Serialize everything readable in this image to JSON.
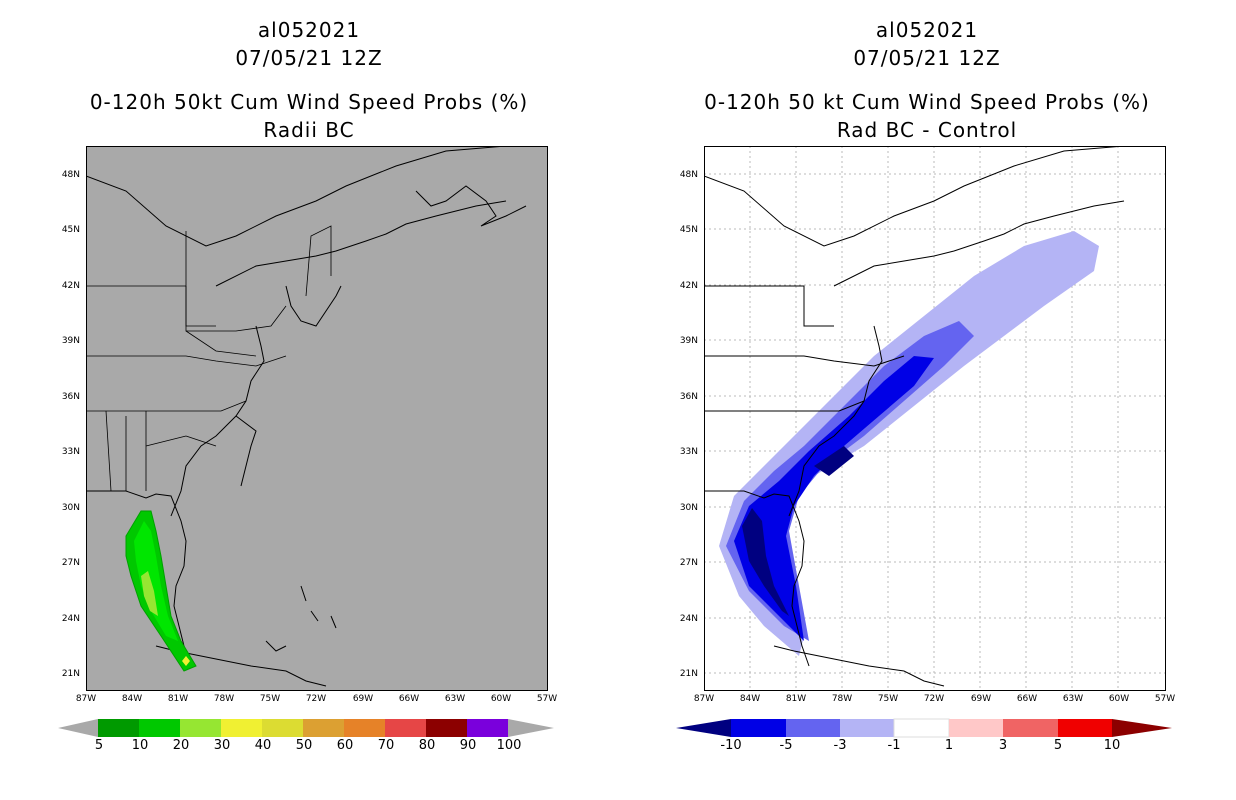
{
  "panels": [
    {
      "id": "left",
      "storm_id": "al052021",
      "datetime": "07/05/21 12Z",
      "title": "0-120h 50kt Cum Wind Speed Probs (%)",
      "subtitle": "Radii BC",
      "background": "#a9a9a9",
      "colorbar": {
        "colors": [
          "#009a00",
          "#00c800",
          "#00e600",
          "#96e632",
          "#f0f032",
          "#dcdc32",
          "#dca032",
          "#e68228",
          "#e64646",
          "#dc0000",
          "#8c0000",
          "#7a00dc"
        ],
        "labels": [
          "5",
          "10",
          "20",
          "30",
          "40",
          "50",
          "60",
          "70",
          "80",
          "90",
          "100"
        ]
      }
    },
    {
      "id": "right",
      "storm_id": "al052021",
      "datetime": "07/05/21 12Z",
      "title": "0-120h 50 kt Cum Wind Speed Probs (%)",
      "subtitle": "Rad BC - Control",
      "background": "#ffffff",
      "colorbar": {
        "colors": [
          "#000080",
          "#0000e6",
          "#6464f0",
          "#b4b4f5",
          "#ffffff",
          "#ffc8c8",
          "#f06464",
          "#f00000",
          "#8c0000"
        ],
        "labels": [
          "-10",
          "-5",
          "-3",
          "-1",
          "1",
          "3",
          "5",
          "10"
        ]
      }
    }
  ],
  "axes": {
    "lat_labels": [
      "48N",
      "45N",
      "42N",
      "39N",
      "36N",
      "33N",
      "30N",
      "27N",
      "24N",
      "21N"
    ],
    "lon_labels": [
      "87W",
      "84W",
      "81W",
      "78W",
      "75W",
      "72W",
      "69W",
      "66W",
      "63W",
      "60W",
      "57W"
    ]
  }
}
